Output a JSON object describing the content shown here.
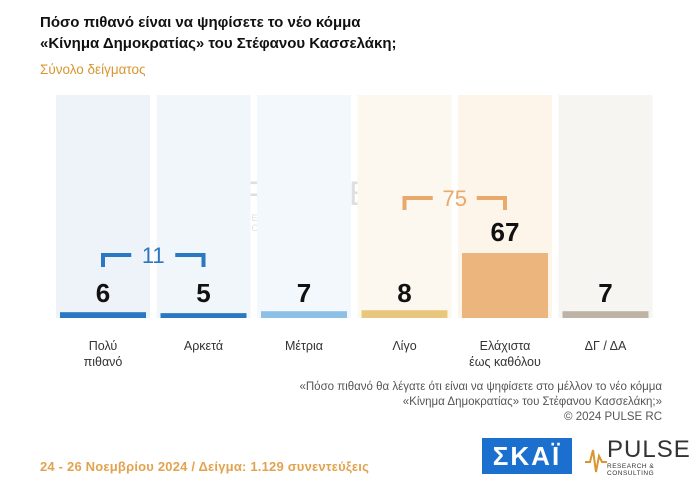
{
  "header": {
    "title_line1": "Πόσο πιθανό είναι να ψηφίσετε το νέο κόμμα",
    "title_line2": "«Κίνημα Δημοκρατίας» του Στέφανου Κασσελάκη;",
    "subtitle": "Σύνολο δείγματος"
  },
  "chart_data": {
    "type": "bar",
    "categories": [
      [
        "Πολύ",
        "πιθανό"
      ],
      [
        "Αρκετά"
      ],
      [
        "Μέτρια"
      ],
      [
        "Λίγο"
      ],
      [
        "Ελάχιστα",
        "έως καθόλου"
      ],
      [
        "ΔΓ / ΔΑ"
      ]
    ],
    "values": [
      6,
      5,
      7,
      8,
      67,
      7
    ],
    "ylim": [
      0,
      100
    ],
    "bar_colors": [
      "#2a78c2",
      "#2a78c2",
      "#8cc0e6",
      "#e8c77d",
      "#e9a96b",
      "#bdb3a7"
    ],
    "column_tints": [
      "#eef3fa",
      "#f1f6fb",
      "#f3f8fc",
      "#fdf8ef",
      "#fdf4ea",
      "#f7f5f2"
    ],
    "groups": [
      {
        "label": "11",
        "from": 0,
        "to": 1,
        "color": "#2a78c2"
      },
      {
        "label": "75",
        "from": 3,
        "to": 4,
        "color": "#e9a96b"
      }
    ]
  },
  "note": {
    "line1": "«Πόσο πιθανό θα λέγατε ότι είναι να ψηφίσετε στο μέλλον το νέο κόμμα",
    "line2": "«Κίνημα Δημοκρατίας» του Στέφανου Κασσελάκη;»",
    "line3": "©  2024  PULSE RC"
  },
  "footer": {
    "text": "24 - 26 Νοεμβρίου 2024  /  Δείγμα:  1.129 συνεντεύξεις"
  },
  "logos": {
    "skai": "ΣΚΑΪ",
    "pulse": "PULSE",
    "pulse_sub": "RESEARCH & CONSULTING"
  }
}
